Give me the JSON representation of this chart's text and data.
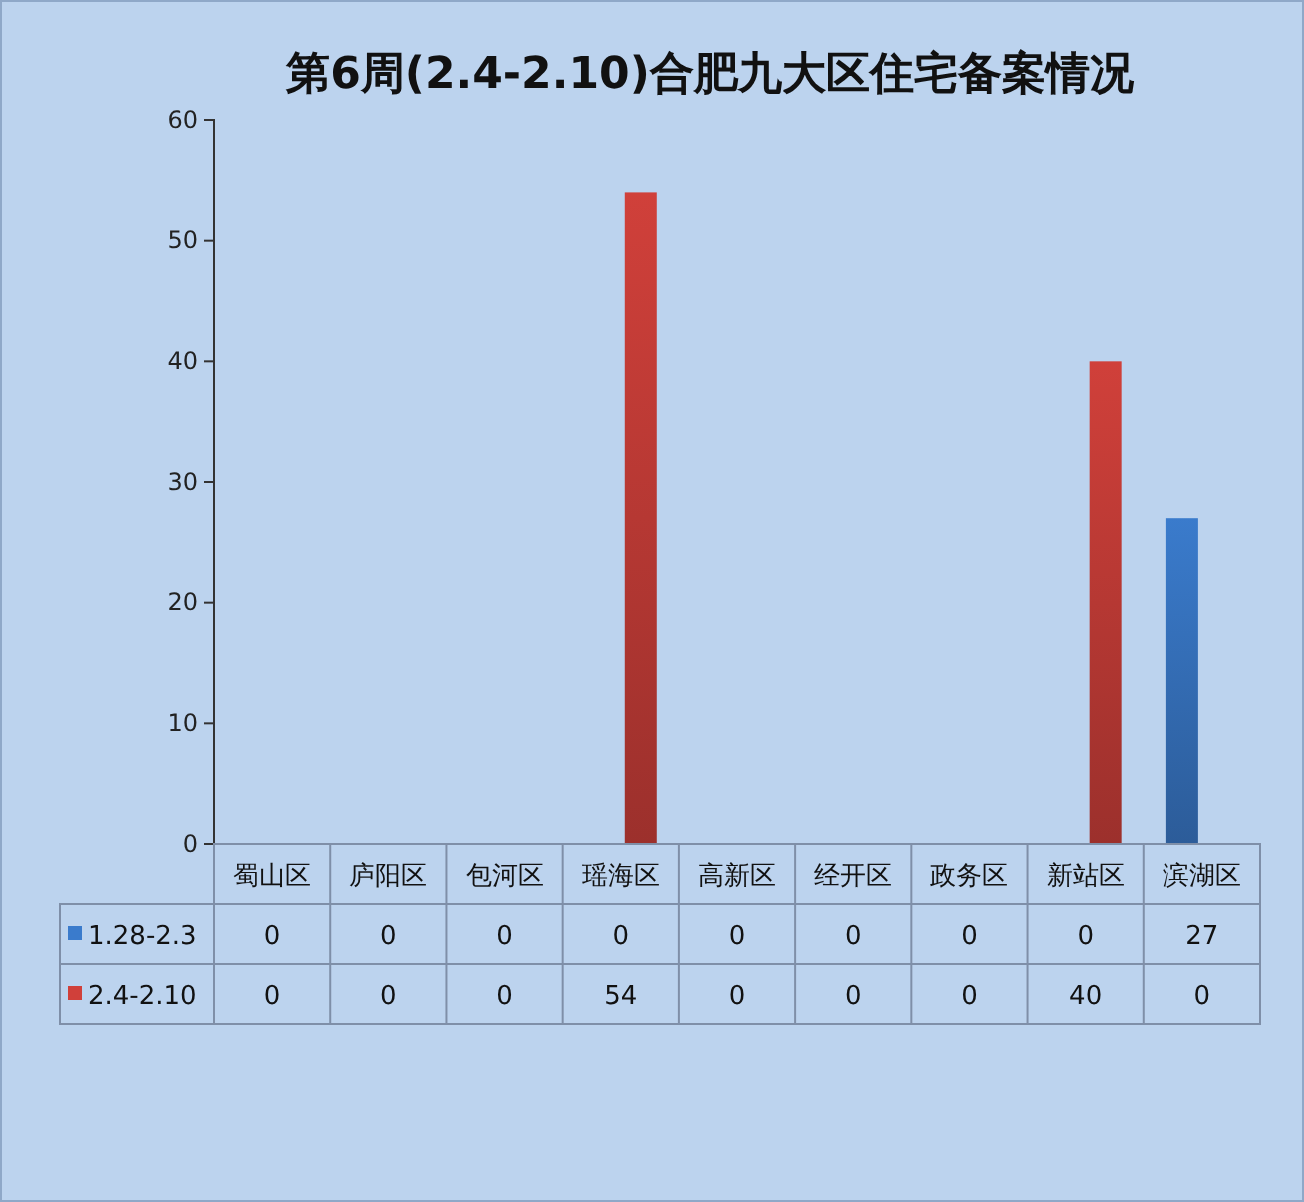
{
  "chart_data": {
    "type": "bar",
    "title": "第6周(2.4-2.10)合肥九大区住宅备案情况",
    "categories": [
      "蜀山区",
      "庐阳区",
      "包河区",
      "瑶海区",
      "高新区",
      "经开区",
      "政务区",
      "新站区",
      "滨湖区"
    ],
    "series": [
      {
        "name": "1.28-2.3",
        "color": "#3a7bcc",
        "values": [
          0,
          0,
          0,
          0,
          0,
          0,
          0,
          0,
          27
        ]
      },
      {
        "name": "2.4-2.10",
        "color": "#d0403a",
        "values": [
          0,
          0,
          0,
          54,
          0,
          0,
          0,
          40,
          0
        ]
      }
    ],
    "ylim": [
      0,
      60
    ],
    "yticks": [
      0,
      10,
      20,
      30,
      40,
      50,
      60
    ],
    "grid": false,
    "legend": "bottom",
    "data_labels": true
  }
}
